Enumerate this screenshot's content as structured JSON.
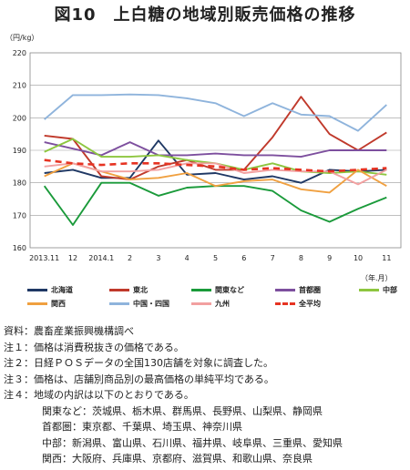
{
  "title": "図10　上白糖の地域別販売価格の推移",
  "chart_data": {
    "type": "line",
    "ylabel": "（円/kg）",
    "xlabel": "（年.月）",
    "ylim": [
      160,
      220
    ],
    "yticks": [
      160,
      170,
      180,
      190,
      200,
      210,
      220
    ],
    "categories": [
      "2013.11",
      "12",
      "2014.1",
      "2",
      "3",
      "4",
      "5",
      "6",
      "7",
      "8",
      "9",
      "10",
      "11"
    ],
    "grid": true,
    "legend_position": "bottom",
    "series": [
      {
        "name": "北海道",
        "color": "#1f3864",
        "dash": false,
        "values": [
          183,
          184,
          181.5,
          181.5,
          193,
          182.5,
          183,
          181,
          182,
          180,
          184,
          183.5,
          184
        ]
      },
      {
        "name": "東北",
        "color": "#c0392b",
        "dash": false,
        "values": [
          194.5,
          193.5,
          182,
          181,
          185,
          187,
          184,
          184,
          194,
          206.5,
          195,
          190,
          195.5
        ]
      },
      {
        "name": "関東など",
        "color": "#1a9a3a",
        "dash": false,
        "values": [
          179,
          167,
          180,
          180,
          176,
          178.5,
          179,
          179,
          177.5,
          171.5,
          168,
          172,
          175.5
        ]
      },
      {
        "name": "首都圏",
        "color": "#7d4f9e",
        "dash": false,
        "values": [
          192.5,
          190.5,
          188.5,
          192.5,
          188.5,
          188.5,
          189,
          188.5,
          188.5,
          188,
          190,
          190,
          190
        ]
      },
      {
        "name": "中部",
        "color": "#8dc63f",
        "dash": false,
        "values": [
          189.5,
          193.5,
          188,
          188,
          188.5,
          187,
          186,
          184,
          186,
          183.5,
          183,
          183.5,
          182.5
        ]
      },
      {
        "name": "関西",
        "color": "#f0a040",
        "dash": false,
        "values": [
          182,
          186,
          183.5,
          181,
          181.5,
          183,
          179,
          180.5,
          181,
          178,
          177,
          184,
          179
        ]
      },
      {
        "name": "中国・四国",
        "color": "#8fb4dc",
        "dash": false,
        "values": [
          199.5,
          207,
          207,
          207.2,
          207,
          206,
          204.5,
          200.5,
          204.5,
          201,
          200.5,
          196,
          204
        ]
      },
      {
        "name": "九州",
        "color": "#f2a0a0",
        "dash": false,
        "values": [
          185,
          186,
          183.5,
          183.5,
          184,
          186,
          186,
          183,
          184,
          183.5,
          183.5,
          179.5,
          184
        ]
      },
      {
        "name": "全平均",
        "color": "#e63322",
        "dash": true,
        "values": [
          187,
          186,
          185.5,
          186,
          186,
          185.5,
          185,
          184,
          184.5,
          184,
          183.5,
          184,
          184.5
        ]
      }
    ]
  },
  "notes": [
    "資料：農畜産業振興機構調べ",
    "注１：価格は消費税抜きの価格である。",
    "注２：日経ＰＯＳデータの全国130店舗を対象に調査した。",
    "注３：価格は、店舗別商品別の最高価格の単純平均である。",
    "注４：地域の内訳は以下のとおりである。"
  ],
  "region_notes": [
    "関東など：茨城県、栃木県、群馬県、長野県、山梨県、静岡県",
    "首都圏：東京都、千葉県、埼玉県、神奈川県",
    "中部：新潟県、富山県、石川県、福井県、岐阜県、三重県、愛知県",
    "関西：大阪府、兵庫県、京都府、滋賀県、和歌山県、奈良県"
  ]
}
